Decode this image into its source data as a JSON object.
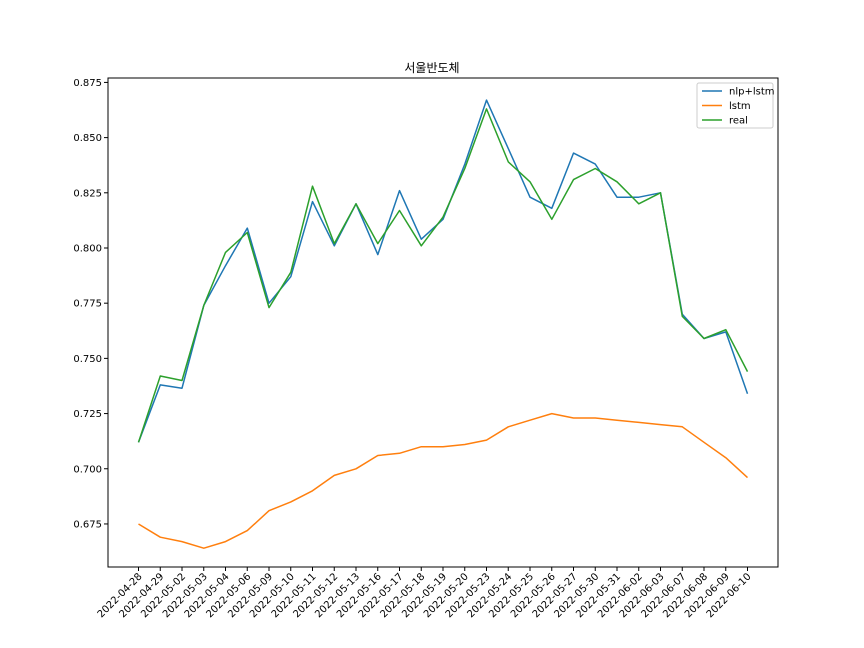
{
  "chart_data": {
    "type": "line",
    "title": "서울반도체",
    "xlabel": "",
    "ylabel": "",
    "ylim": [
      0.6555,
      0.877
    ],
    "yticks": [
      "0.675",
      "0.700",
      "0.725",
      "0.750",
      "0.775",
      "0.800",
      "0.825",
      "0.850",
      "0.875"
    ],
    "ytick_values": [
      0.675,
      0.7,
      0.725,
      0.75,
      0.775,
      0.8,
      0.825,
      0.85,
      0.875
    ],
    "grid": false,
    "legend_position": "top-right",
    "categories": [
      "2022-04-28",
      "2022-04-29",
      "2022-05-02",
      "2022-05-03",
      "2022-05-04",
      "2022-05-06",
      "2022-05-09",
      "2022-05-10",
      "2022-05-11",
      "2022-05-12",
      "2022-05-13",
      "2022-05-16",
      "2022-05-17",
      "2022-05-18",
      "2022-05-19",
      "2022-05-20",
      "2022-05-23",
      "2022-05-24",
      "2022-05-25",
      "2022-05-26",
      "2022-05-27",
      "2022-05-30",
      "2022-05-31",
      "2022-06-02",
      "2022-06-03",
      "2022-06-07",
      "2022-06-08",
      "2022-06-09",
      "2022-06-10"
    ],
    "series": [
      {
        "name": "nlp+lstm",
        "color": "#1f77b4",
        "values": [
          0.712,
          0.738,
          0.7365,
          0.774,
          0.792,
          0.809,
          0.775,
          0.787,
          0.821,
          0.801,
          0.82,
          0.797,
          0.826,
          0.804,
          0.813,
          0.838,
          0.867,
          0.845,
          0.823,
          0.818,
          0.843,
          0.838,
          0.823,
          0.823,
          0.825,
          0.77,
          0.759,
          0.762,
          0.734
        ]
      },
      {
        "name": "lstm",
        "color": "#ff7f0e",
        "values": [
          0.675,
          0.669,
          0.667,
          0.664,
          0.667,
          0.672,
          0.681,
          0.685,
          0.69,
          0.697,
          0.7,
          0.706,
          0.707,
          0.71,
          0.71,
          0.711,
          0.713,
          0.719,
          0.722,
          0.725,
          0.723,
          0.723,
          0.722,
          0.721,
          0.72,
          0.719,
          0.712,
          0.705,
          0.696
        ]
      },
      {
        "name": "real",
        "color": "#2ca02c",
        "values": [
          0.712,
          0.742,
          0.74,
          0.774,
          0.798,
          0.807,
          0.773,
          0.789,
          0.828,
          0.802,
          0.82,
          0.802,
          0.817,
          0.801,
          0.814,
          0.836,
          0.863,
          0.839,
          0.83,
          0.813,
          0.831,
          0.836,
          0.83,
          0.82,
          0.825,
          0.769,
          0.759,
          0.763,
          0.744
        ]
      }
    ]
  }
}
